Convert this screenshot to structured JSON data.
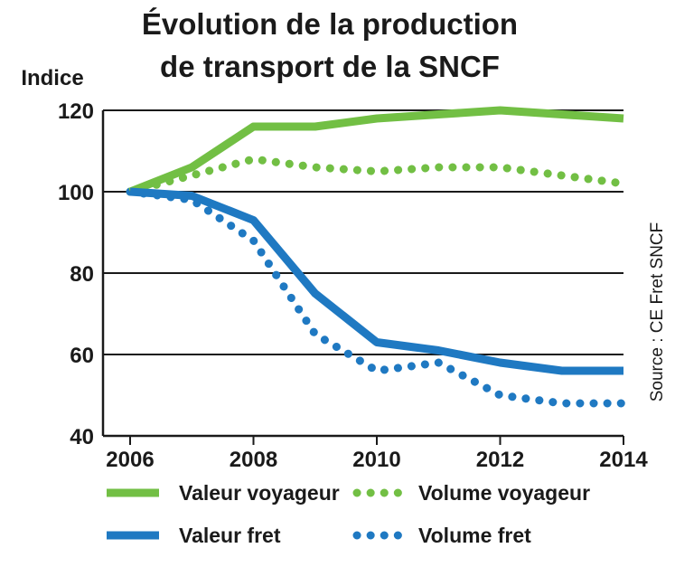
{
  "chart_data": {
    "type": "line",
    "title": [
      "Évolution de la production",
      "de transport de la SNCF"
    ],
    "ylabel": "Indice",
    "xlabel": "",
    "source": "Source : CE Fret SNCF",
    "ylim": [
      40,
      120
    ],
    "yticks": [
      40,
      60,
      80,
      100,
      120
    ],
    "xlim": [
      2006,
      2014
    ],
    "xticks": [
      2006,
      2008,
      2010,
      2012,
      2014
    ],
    "grid": "horizontal",
    "legend_position": "bottom",
    "series": [
      {
        "name": "Valeur voyageur",
        "color": "#72bf44",
        "style": "solid",
        "x": [
          2006,
          2007,
          2008,
          2009,
          2010,
          2011,
          2012,
          2013,
          2014
        ],
        "values": [
          100,
          106,
          116,
          116,
          118,
          119,
          120,
          119,
          118
        ]
      },
      {
        "name": "Volume voyageur",
        "color": "#72bf44",
        "style": "dotted",
        "x": [
          2006,
          2007,
          2008,
          2009,
          2010,
          2011,
          2012,
          2013,
          2014
        ],
        "values": [
          100,
          104,
          108,
          106,
          105,
          106,
          106,
          104,
          102
        ]
      },
      {
        "name": "Valeur fret",
        "color": "#1f79c2",
        "style": "solid",
        "x": [
          2006,
          2007,
          2008,
          2009,
          2010,
          2011,
          2012,
          2013,
          2014
        ],
        "values": [
          100,
          99,
          93,
          75,
          63,
          61,
          58,
          56,
          56
        ]
      },
      {
        "name": "Volume fret",
        "color": "#1f79c2",
        "style": "dotted",
        "x": [
          2006,
          2007,
          2008,
          2009,
          2010,
          2011,
          2012,
          2013,
          2014
        ],
        "values": [
          100,
          98,
          88,
          65,
          56,
          58,
          50,
          48,
          48
        ]
      }
    ]
  }
}
